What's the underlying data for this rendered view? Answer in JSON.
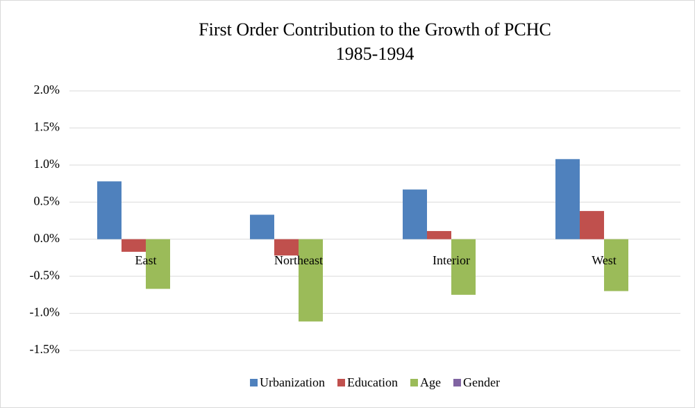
{
  "chart_data": {
    "type": "bar",
    "title": "First Order Contribution to the Growth of PCHC",
    "subtitle": "1985-1994",
    "categories": [
      "East",
      "Northeast",
      "Interior",
      "West"
    ],
    "series": [
      {
        "name": "Urbanization",
        "color": "#4f81bd",
        "values": [
          0.78,
          0.33,
          0.67,
          1.08
        ]
      },
      {
        "name": "Education",
        "color": "#c0504d",
        "values": [
          -0.17,
          -0.22,
          0.11,
          0.38
        ]
      },
      {
        "name": "Age",
        "color": "#9bbb59",
        "values": [
          -0.67,
          -1.11,
          -0.75,
          -0.7
        ]
      },
      {
        "name": "Gender",
        "color": "#8064a2",
        "values": [
          0,
          0,
          0,
          0
        ]
      }
    ],
    "ylim": [
      -1.5,
      2.0
    ],
    "yticks": [
      {
        "value": -1.5,
        "label": "-1.5%"
      },
      {
        "value": -1.0,
        "label": "-1.0%"
      },
      {
        "value": -0.5,
        "label": "-0.5%"
      },
      {
        "value": 0,
        "label": "0.0%"
      },
      {
        "value": 0.5,
        "label": "0.5%"
      },
      {
        "value": 1.0,
        "label": "1.0%"
      },
      {
        "value": 1.5,
        "label": "1.5%"
      },
      {
        "value": 2.0,
        "label": "2.0%"
      }
    ],
    "grid": true,
    "legend": "bottom"
  }
}
